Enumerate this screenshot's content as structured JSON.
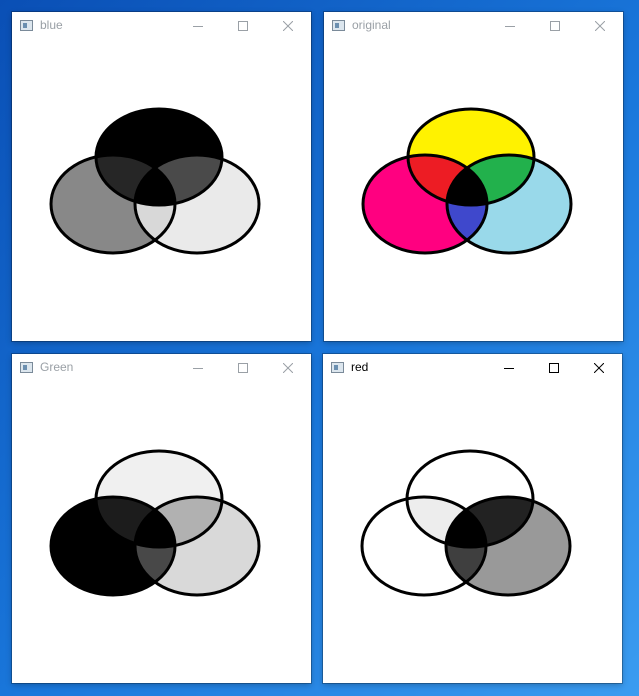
{
  "windows": {
    "blue": {
      "title": "blue",
      "active": false,
      "colors": {
        "top": "#000000",
        "left": "#888888",
        "right": "#eaeaea",
        "tl": "#262626",
        "tr": "#4a4a4a",
        "lr": "#d8d8d8",
        "center": "#000000"
      }
    },
    "original": {
      "title": "original",
      "active": false,
      "colors": {
        "top": "#fff200",
        "left": "#ff0080",
        "right": "#99d9ea",
        "tl": "#ed1c24",
        "tr": "#22b14c",
        "lr": "#3f48cc",
        "center": "#000000"
      }
    },
    "green": {
      "title": "Green",
      "active": false,
      "colors": {
        "top": "#f0f0f0",
        "left": "#000000",
        "right": "#d9d9d9",
        "tl": "#1c1c1c",
        "tr": "#b1b1b1",
        "lr": "#484848",
        "center": "#000000"
      }
    },
    "red": {
      "title": "red",
      "active": true,
      "colors": {
        "top": "#ffffff",
        "left": "#ffffff",
        "right": "#999999",
        "tl": "#ededed",
        "tr": "#222222",
        "lr": "#3f3f3f",
        "center": "#000000"
      }
    }
  },
  "colors": {
    "desktop": "#1a78dc",
    "window_bg": "#ffffff",
    "outline": "#000000"
  },
  "icons": {
    "minimize": "minimize-icon",
    "maximize": "maximize-icon",
    "close": "close-icon",
    "app": "app-icon"
  }
}
